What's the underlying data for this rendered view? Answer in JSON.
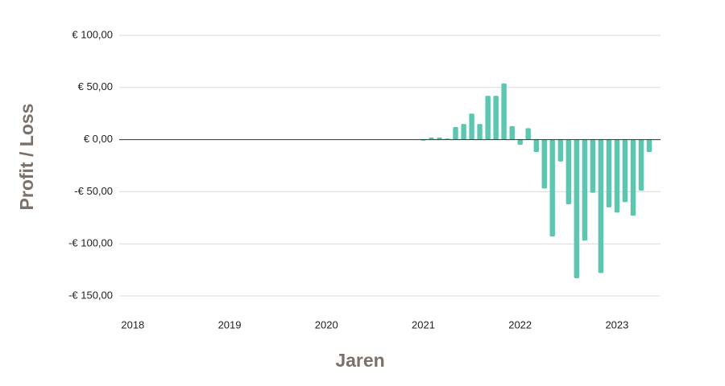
{
  "chart_data": {
    "type": "bar",
    "x_label": "Jaren",
    "y_label": "Profit / Loss",
    "color": "#5cc7ae",
    "x": [
      2021,
      2021.083,
      2021.167,
      2021.25,
      2021.333,
      2021.417,
      2021.5,
      2021.583,
      2021.667,
      2021.75,
      2021.833,
      2021.917,
      2022,
      2022.083,
      2022.167,
      2022.25,
      2022.333,
      2022.417,
      2022.5,
      2022.583,
      2022.667,
      2022.75,
      2022.833,
      2022.917,
      2023,
      2023.083,
      2023.167,
      2023.25,
      2023.333
    ],
    "values": [
      -1,
      2,
      2,
      1,
      12,
      15,
      25,
      15,
      42,
      42,
      54,
      13,
      -5,
      11,
      -12,
      -47,
      -93,
      -21,
      -62,
      -133,
      -97,
      -51,
      -128,
      -65,
      -70,
      -60,
      -73,
      -49,
      -12
    ],
    "xlim": [
      2017.86,
      2023.45
    ],
    "xticks": [
      2018,
      2019,
      2020,
      2021,
      2022,
      2023
    ],
    "ylim": [
      -150,
      100
    ],
    "yticks": [
      {
        "value": 100,
        "label": "€ 100,00"
      },
      {
        "value": 50,
        "label": "€ 50,00"
      },
      {
        "value": 0,
        "label": "€ 0,00"
      },
      {
        "value": -50,
        "label": "-€ 50,00"
      },
      {
        "value": -100,
        "label": "-€ 100,00"
      },
      {
        "value": -150,
        "label": "-€ 150,00"
      }
    ],
    "grid": true
  }
}
